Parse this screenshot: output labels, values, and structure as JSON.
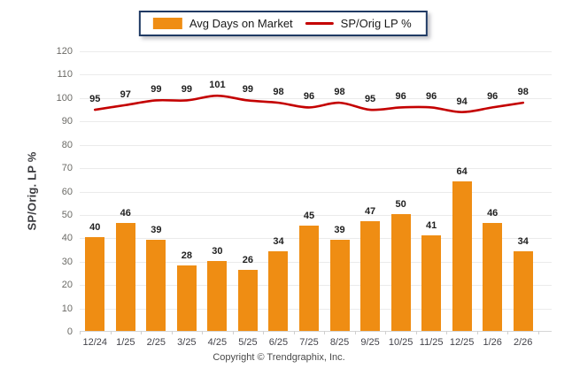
{
  "legend": {
    "bar_label": "Avg Days on Market",
    "line_label": "SP/Orig LP %"
  },
  "y_axis_title": "SP/Orig. LP %",
  "footer": {
    "copyright": "Copyright © Trendgraphix, Inc."
  },
  "colors": {
    "bar": "#EF8D13",
    "line": "#C40000",
    "legend_border": "#203A64",
    "grid": "#ebebeb",
    "y_tick_label": "#6B6A66",
    "x_label": "#43434a",
    "data_label": "#1f1f1f"
  },
  "chart_data": {
    "type": "bar",
    "categories": [
      "12/24",
      "1/25",
      "2/25",
      "3/25",
      "4/25",
      "5/25",
      "6/25",
      "7/25",
      "8/25",
      "9/25",
      "10/25",
      "11/25",
      "12/25",
      "1/26",
      "2/26"
    ],
    "series": [
      {
        "name": "Avg Days on Market",
        "kind": "bar",
        "color": "#EF8D13",
        "values": [
          40,
          46,
          39,
          28,
          30,
          26,
          34,
          45,
          39,
          47,
          50,
          41,
          64,
          46,
          34
        ]
      },
      {
        "name": "SP/Orig LP %",
        "kind": "line",
        "color": "#C40000",
        "values": [
          95,
          97,
          99,
          99,
          101,
          99,
          98,
          96,
          98,
          95,
          96,
          96,
          94,
          96,
          98
        ]
      }
    ],
    "title": "",
    "xlabel": "",
    "ylabel": "SP/Orig. LP %",
    "ylim": [
      0,
      120
    ],
    "ytick_step": 10,
    "grid": true,
    "legend_position": "top-center"
  }
}
